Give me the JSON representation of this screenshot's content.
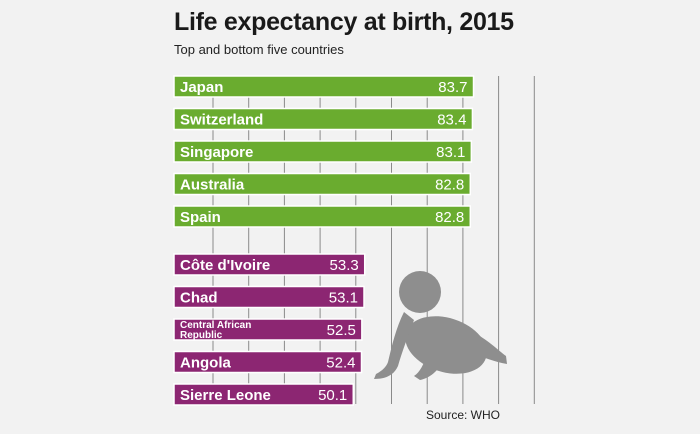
{
  "header": {
    "title": "Life expectancy at birth, 2015",
    "subtitle": "Top and bottom five countries"
  },
  "source": "Source: WHO",
  "colors": {
    "top_bar": "#6aac2f",
    "bottom_bar": "#8c2672",
    "grid": "#8a8a8a",
    "silhouette": "#8e8e8e"
  },
  "icons": [
    "baby-silhouette-icon"
  ],
  "chart_data": {
    "type": "bar",
    "orientation": "horizontal",
    "title": "Life expectancy at birth, 2015",
    "subtitle": "Top and bottom five countries",
    "grid": true,
    "groups": [
      {
        "color": "#6aac2f",
        "categories": [
          "Japan",
          "Switzerland",
          "Singapore",
          "Australia",
          "Spain"
        ],
        "values": [
          83.7,
          83.4,
          83.1,
          82.8,
          82.8
        ],
        "labels": [
          "83.7",
          "83.4",
          "83.1",
          "82.8",
          "82.8"
        ]
      },
      {
        "color": "#8c2672",
        "categories": [
          "Côte d'Ivoire",
          "Chad",
          "Central African Republic",
          "Angola",
          "Sierre Leone"
        ],
        "values": [
          53.3,
          53.1,
          52.5,
          52.4,
          50.1
        ],
        "labels": [
          "53.3",
          "53.1",
          "52.5",
          "52.4",
          "50.1"
        ]
      }
    ],
    "xlim": [
      0,
      90
    ],
    "source": "Source: WHO"
  }
}
